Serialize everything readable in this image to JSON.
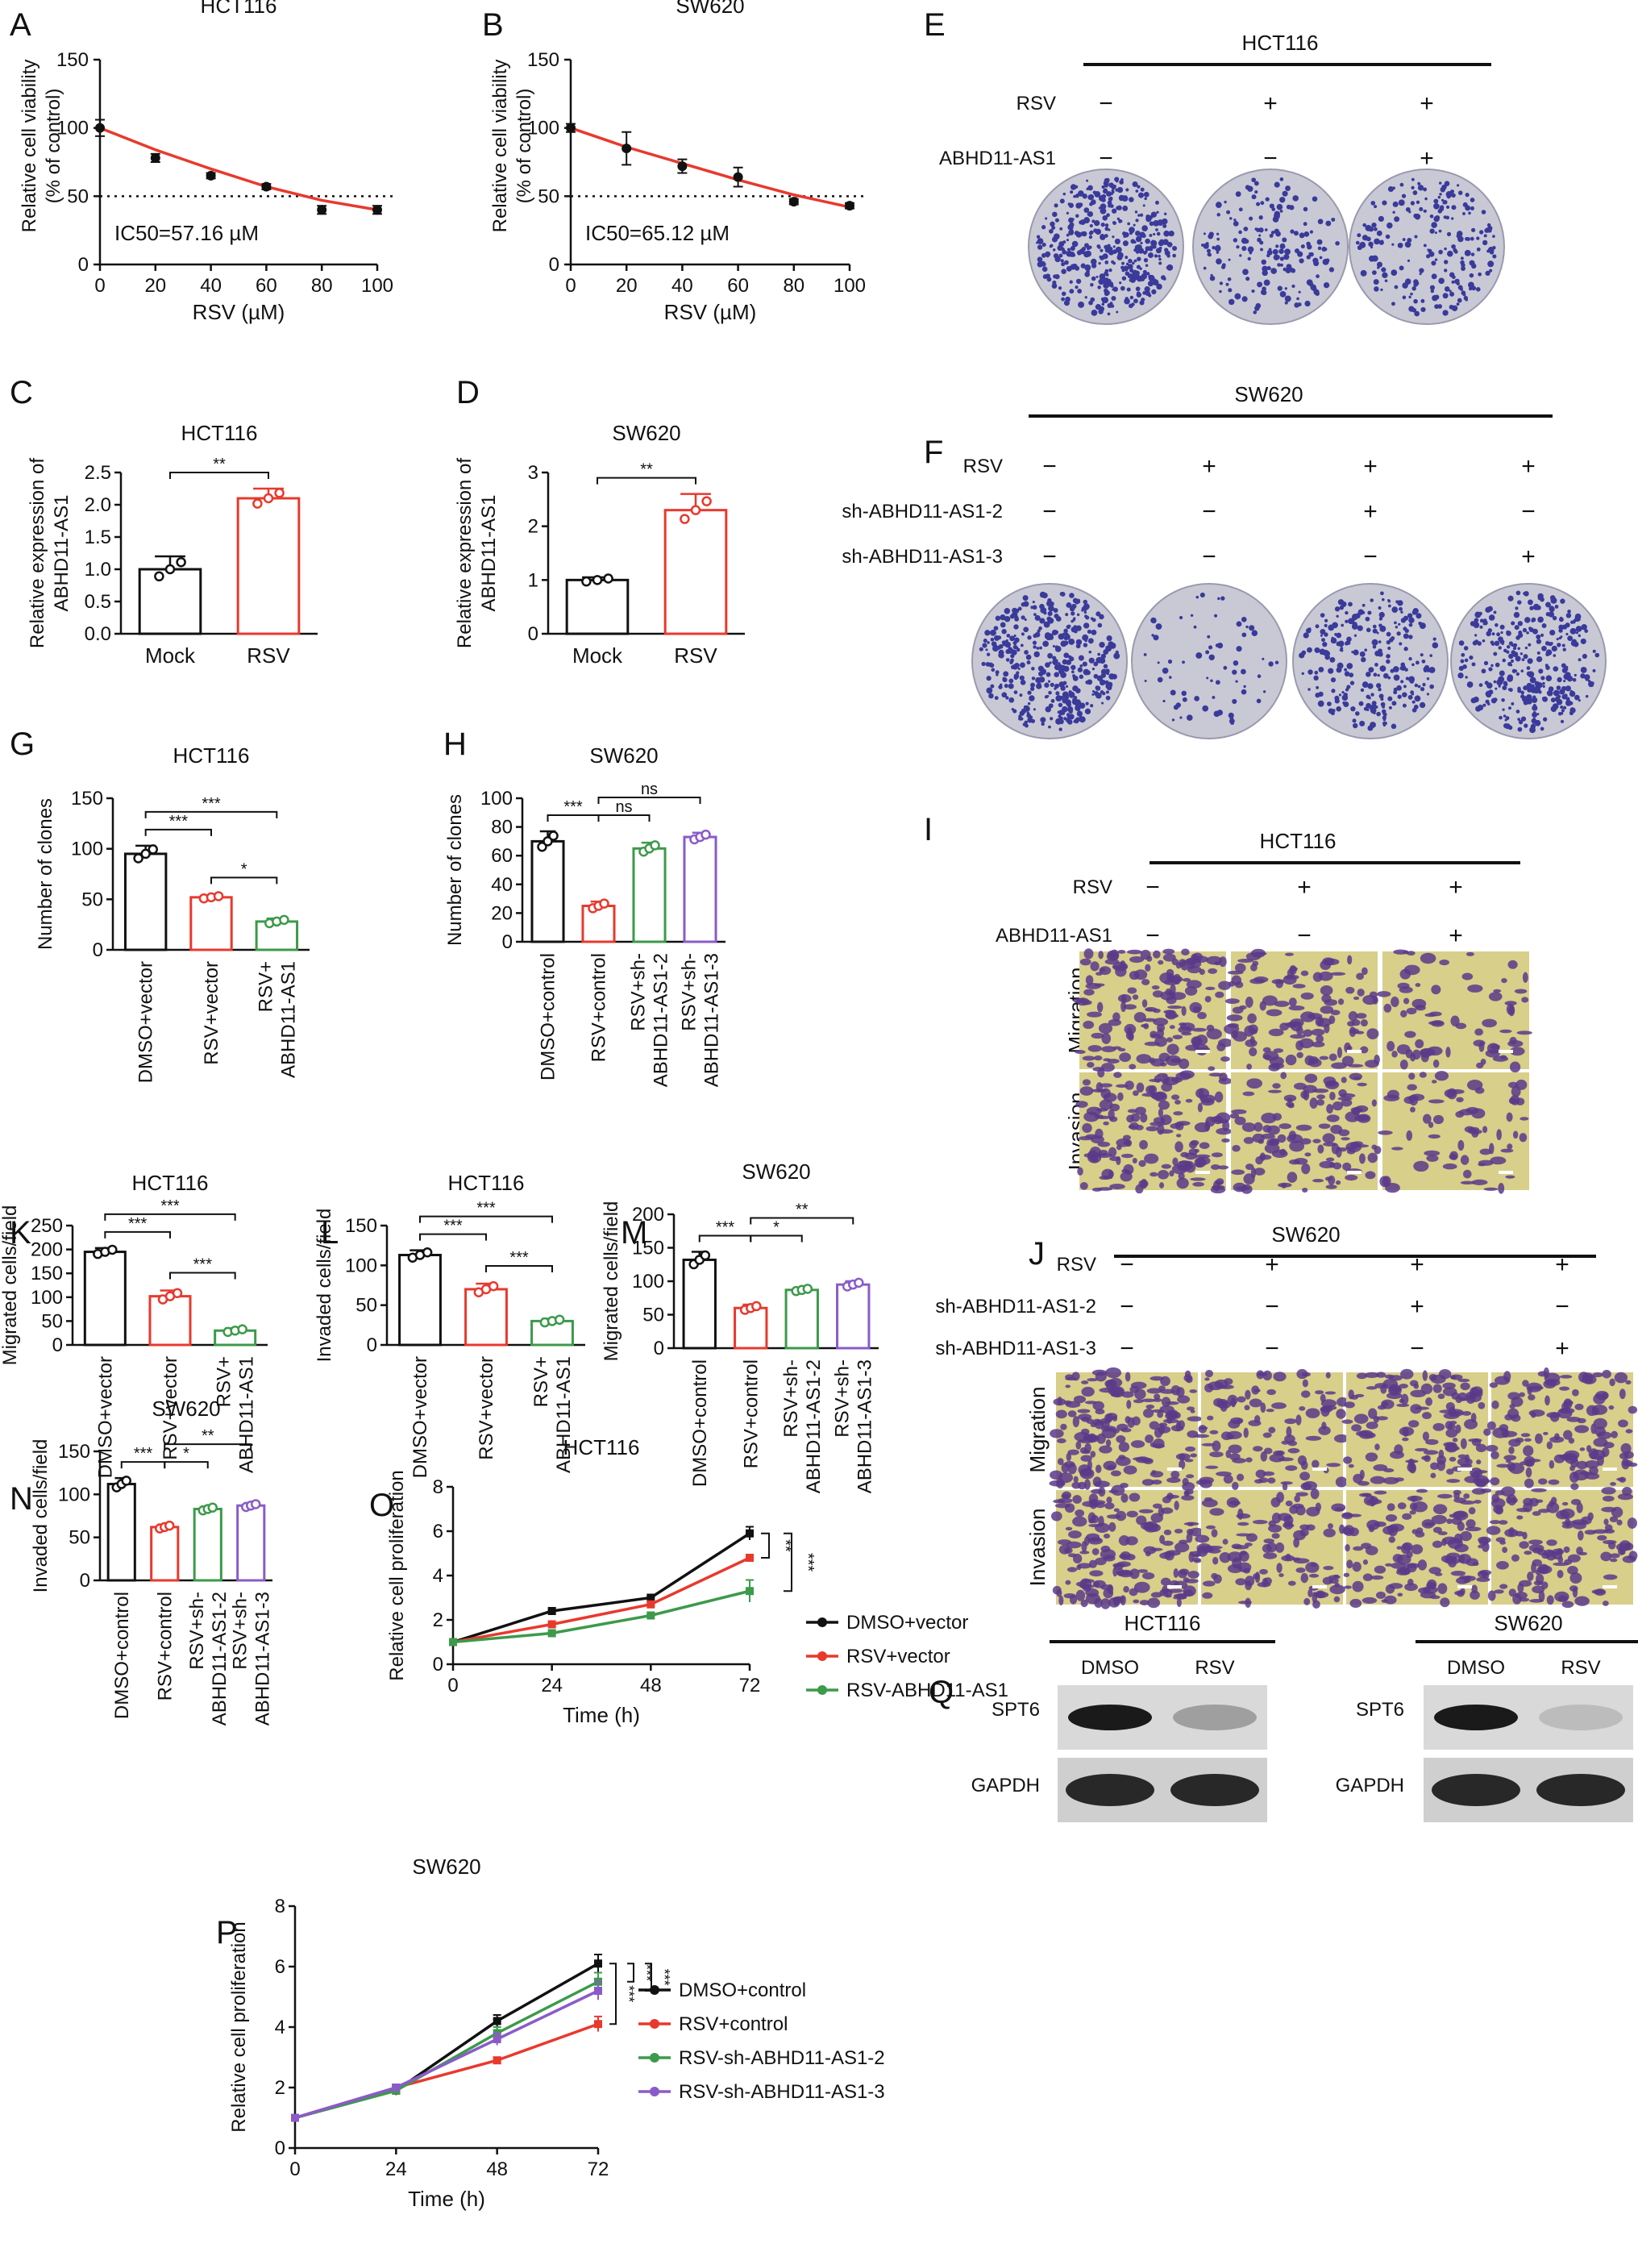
{
  "figure": {
    "panels": {
      "A": {
        "letter": "A",
        "title": "HCT116",
        "annotation": "IC50=57.16 µM"
      },
      "B": {
        "letter": "B",
        "title": "SW620",
        "annotation": "IC50=65.12 µM"
      },
      "C": {
        "letter": "C",
        "title": "HCT116"
      },
      "D": {
        "letter": "D",
        "title": "SW620"
      },
      "E": {
        "letter": "E",
        "title": "HCT116",
        "rows": [
          {
            "label": "RSV",
            "marks": [
              "−",
              "+",
              "+"
            ]
          },
          {
            "label": "ABHD11-AS1",
            "marks": [
              "−",
              "−",
              "+"
            ]
          }
        ]
      },
      "F": {
        "letter": "F",
        "title": "SW620",
        "rows": [
          {
            "label": "RSV",
            "marks": [
              "−",
              "+",
              "+",
              "+"
            ]
          },
          {
            "label": "sh-ABHD11-AS1-2",
            "marks": [
              "−",
              "−",
              "+",
              "−"
            ]
          },
          {
            "label": "sh-ABHD11-AS1-3",
            "marks": [
              "−",
              "−",
              "−",
              "+"
            ]
          }
        ]
      },
      "G": {
        "letter": "G",
        "title": "HCT116"
      },
      "H": {
        "letter": "H",
        "title": "SW620"
      },
      "I": {
        "letter": "I",
        "title": "HCT116",
        "rows": [
          {
            "label": "RSV",
            "marks": [
              "−",
              "+",
              "+"
            ]
          },
          {
            "label": "ABHD11-AS1",
            "marks": [
              "−",
              "−",
              "+"
            ]
          }
        ],
        "row_labels": [
          "Migration",
          "Invasion"
        ]
      },
      "J": {
        "letter": "J",
        "title": "SW620",
        "rows": [
          {
            "label": "RSV",
            "marks": [
              "−",
              "+",
              "+",
              "+"
            ]
          },
          {
            "label": "sh-ABHD11-AS1-2",
            "marks": [
              "−",
              "−",
              "+",
              "−"
            ]
          },
          {
            "label": "sh-ABHD11-AS1-3",
            "marks": [
              "−",
              "−",
              "−",
              "+"
            ]
          }
        ],
        "row_labels": [
          "Migration",
          "Invasion"
        ]
      },
      "K": {
        "letter": "K",
        "title": "HCT116"
      },
      "L": {
        "letter": "L",
        "title": "HCT116"
      },
      "M": {
        "letter": "M",
        "title": "SW620"
      },
      "N": {
        "letter": "N",
        "title": "SW620"
      },
      "O": {
        "letter": "O",
        "title": "HCT116"
      },
      "P": {
        "letter": "P",
        "title": "SW620"
      },
      "Q": {
        "letter": "Q",
        "blots": [
          {
            "title": "HCT116",
            "lanes": [
              "DMSO",
              "RSV"
            ],
            "bands": [
              "SPT6",
              "GAPDH"
            ],
            "spt6_intensity": [
              1.0,
              0.3
            ]
          },
          {
            "title": "SW620",
            "lanes": [
              "DMSO",
              "RSV"
            ],
            "bands": [
              "SPT6",
              "GAPDH"
            ],
            "spt6_intensity": [
              1.0,
              0.15
            ]
          }
        ]
      }
    },
    "colors": {
      "red": "#e8392d",
      "black": "#111111",
      "green": "#3c9a4a",
      "purple": "#8a5bc8",
      "dish_bg": "#c9c9d6",
      "dish_dot": "#3a3a9a",
      "well_bg": "#d8cf8a",
      "well_cell": "#5a3a8a"
    }
  },
  "chart_data": [
    {
      "panel": "A",
      "type": "scatter",
      "title": "HCT116",
      "xlabel": "RSV (µM)",
      "ylabel": "Relative cell viability (% of control)",
      "x": [
        0,
        20,
        40,
        60,
        80,
        100
      ],
      "y": [
        100,
        78,
        65,
        57,
        40,
        40
      ],
      "err": [
        6,
        3,
        2,
        2,
        3,
        3
      ],
      "xlim": [
        0,
        100
      ],
      "ylim": [
        0,
        150
      ],
      "xticks": [
        0,
        20,
        40,
        60,
        80,
        100
      ],
      "yticks": [
        0,
        50,
        100,
        150
      ],
      "fit": [
        [
          0,
          100
        ],
        [
          20,
          84
        ],
        [
          40,
          70
        ],
        [
          60,
          57
        ],
        [
          80,
          47
        ],
        [
          100,
          40
        ]
      ],
      "dashed_y": 50,
      "annotation": "IC50=57.16 µM"
    },
    {
      "panel": "B",
      "type": "scatter",
      "title": "SW620",
      "xlabel": "RSV (µM)",
      "ylabel": "Relative cell viability (% of control)",
      "x": [
        0,
        20,
        40,
        60,
        80,
        100
      ],
      "y": [
        100,
        85,
        72,
        64,
        46,
        43
      ],
      "err": [
        3,
        12,
        5,
        7,
        2,
        2
      ],
      "xlim": [
        0,
        100
      ],
      "ylim": [
        0,
        150
      ],
      "xticks": [
        0,
        20,
        40,
        60,
        80,
        100
      ],
      "yticks": [
        0,
        50,
        100,
        150
      ],
      "fit": [
        [
          0,
          100
        ],
        [
          20,
          86
        ],
        [
          40,
          74
        ],
        [
          60,
          62
        ],
        [
          80,
          51
        ],
        [
          100,
          42
        ]
      ],
      "dashed_y": 50,
      "annotation": "IC50=65.12 µM"
    },
    {
      "panel": "C",
      "type": "bar",
      "title": "HCT116",
      "categories": [
        "Mock",
        "RSV"
      ],
      "values": [
        1.0,
        2.1
      ],
      "errors": [
        0.2,
        0.15
      ],
      "ylabel": "Relative expression of ABHD11-AS1",
      "ylim": [
        0,
        2.5
      ],
      "yticks": [
        0.0,
        0.5,
        1.0,
        1.5,
        2.0,
        2.5
      ],
      "sig": [
        {
          "a": 0,
          "b": 1,
          "label": "**"
        }
      ]
    },
    {
      "panel": "D",
      "type": "bar",
      "title": "SW620",
      "categories": [
        "Mock",
        "RSV"
      ],
      "values": [
        1.0,
        2.3
      ],
      "errors": [
        0.05,
        0.3
      ],
      "ylabel": "Relative expression of ABHD11-AS1",
      "ylim": [
        0,
        3
      ],
      "yticks": [
        0,
        1,
        2,
        3
      ],
      "sig": [
        {
          "a": 0,
          "b": 1,
          "label": "**"
        }
      ]
    },
    {
      "panel": "G",
      "type": "bar",
      "title": "HCT116",
      "categories": [
        "DMSO+vector",
        "RSV+vector",
        "RSV+\nABHD11-AS1"
      ],
      "values": [
        95,
        52,
        28
      ],
      "errors": [
        8,
        2,
        3
      ],
      "ylabel": "Number of clones",
      "ylim": [
        0,
        150
      ],
      "yticks": [
        0,
        50,
        100,
        150
      ],
      "sig": [
        {
          "a": 0,
          "b": 1,
          "label": "***"
        },
        {
          "a": 0,
          "b": 2,
          "label": "***"
        },
        {
          "a": 1,
          "b": 2,
          "label": "*"
        }
      ]
    },
    {
      "panel": "H",
      "type": "bar",
      "title": "SW620",
      "categories": [
        "DMSO+control",
        "RSV+control",
        "RSV+sh-\nABHD11-AS1-2",
        "RSV+sh-\nABHD11-AS1-3"
      ],
      "values": [
        70,
        25,
        65,
        73
      ],
      "errors": [
        7,
        3,
        4,
        3
      ],
      "ylabel": "Number of clones",
      "ylim": [
        0,
        100
      ],
      "yticks": [
        0,
        20,
        40,
        60,
        80,
        100
      ],
      "sig": [
        {
          "a": 0,
          "b": 1,
          "label": "***"
        },
        {
          "a": 1,
          "b": 2,
          "label": "ns"
        },
        {
          "a": 1,
          "b": 3,
          "label": "ns"
        }
      ]
    },
    {
      "panel": "K",
      "type": "bar",
      "title": "HCT116",
      "categories": [
        "DMSO+vector",
        "RSV+vector",
        "RSV+\nABHD11-AS1"
      ],
      "values": [
        195,
        102,
        30
      ],
      "errors": [
        8,
        12,
        5
      ],
      "ylabel": "Migrated cells/field",
      "ylim": [
        0,
        250
      ],
      "yticks": [
        0,
        50,
        100,
        150,
        200,
        250
      ],
      "sig": [
        {
          "a": 0,
          "b": 1,
          "label": "***"
        },
        {
          "a": 0,
          "b": 2,
          "label": "***"
        },
        {
          "a": 1,
          "b": 2,
          "label": "***"
        }
      ]
    },
    {
      "panel": "L",
      "type": "bar",
      "title": "HCT116",
      "categories": [
        "DMSO+vector",
        "RSV+vector",
        "RSV+\nABHD11-AS1"
      ],
      "values": [
        113,
        70,
        30
      ],
      "errors": [
        6,
        7,
        3
      ],
      "ylabel": "Invaded cells/field",
      "ylim": [
        0,
        150
      ],
      "yticks": [
        0,
        50,
        100,
        150
      ],
      "sig": [
        {
          "a": 0,
          "b": 1,
          "label": "***"
        },
        {
          "a": 0,
          "b": 2,
          "label": "***"
        },
        {
          "a": 1,
          "b": 2,
          "label": "***"
        }
      ]
    },
    {
      "panel": "M",
      "type": "bar",
      "title": "SW620",
      "categories": [
        "DMSO+control",
        "RSV+control",
        "RSV+sh-\nABHD11-AS1-2",
        "RSV+sh-\nABHD11-AS1-3"
      ],
      "values": [
        132,
        60,
        87,
        95
      ],
      "errors": [
        12,
        5,
        3,
        5
      ],
      "ylabel": "Migrated cells/field",
      "ylim": [
        0,
        200
      ],
      "yticks": [
        0,
        50,
        100,
        150,
        200
      ],
      "sig": [
        {
          "a": 0,
          "b": 1,
          "label": "***"
        },
        {
          "a": 1,
          "b": 2,
          "label": "*"
        },
        {
          "a": 1,
          "b": 3,
          "label": "**"
        }
      ]
    },
    {
      "panel": "N",
      "type": "bar",
      "title": "SW620",
      "categories": [
        "DMSO+control",
        "RSV+control",
        "RSV+sh-\nABHD11-AS1-2",
        "RSV+sh-\nABHD11-AS1-3"
      ],
      "values": [
        112,
        62,
        83,
        87
      ],
      "errors": [
        7,
        3,
        3,
        3
      ],
      "ylabel": "Invaded cells/field",
      "ylim": [
        0,
        150
      ],
      "yticks": [
        0,
        50,
        100,
        150
      ],
      "sig": [
        {
          "a": 0,
          "b": 1,
          "label": "***"
        },
        {
          "a": 1,
          "b": 2,
          "label": "*"
        },
        {
          "a": 1,
          "b": 3,
          "label": "**"
        }
      ]
    },
    {
      "panel": "O",
      "type": "line",
      "title": "HCT116",
      "xlabel": "Time (h)",
      "ylabel": "Relative cell proliferation",
      "x": [
        0,
        24,
        48,
        72
      ],
      "xlim": [
        0,
        72
      ],
      "ylim": [
        0,
        8
      ],
      "xticks": [
        0,
        24,
        48,
        72
      ],
      "yticks": [
        0,
        2,
        4,
        6,
        8
      ],
      "series": [
        {
          "name": "DMSO+vector",
          "values": [
            1.0,
            2.4,
            3.0,
            5.9
          ],
          "err": [
            0.05,
            0.05,
            0.05,
            0.3
          ]
        },
        {
          "name": "RSV+vector",
          "values": [
            1.0,
            1.8,
            2.7,
            4.8
          ],
          "err": [
            0.05,
            0.05,
            0.05,
            0.1
          ]
        },
        {
          "name": "RSV-ABHD11-AS1",
          "values": [
            1.0,
            1.4,
            2.2,
            3.3
          ],
          "err": [
            0.05,
            0.05,
            0.05,
            0.5
          ]
        }
      ],
      "sig": [
        "**",
        "***"
      ]
    },
    {
      "panel": "P",
      "type": "line",
      "title": "SW620",
      "xlabel": "Time (h)",
      "ylabel": "Relative cell proliferation",
      "x": [
        0,
        24,
        48,
        72
      ],
      "xlim": [
        0,
        72
      ],
      "ylim": [
        0,
        8
      ],
      "xticks": [
        0,
        24,
        48,
        72
      ],
      "yticks": [
        0,
        2,
        4,
        6,
        8
      ],
      "series": [
        {
          "name": "DMSO+control",
          "values": [
            1.0,
            1.9,
            4.2,
            6.1
          ],
          "err": [
            0.05,
            0.15,
            0.2,
            0.3
          ]
        },
        {
          "name": "RSV+control",
          "values": [
            1.0,
            2.0,
            2.9,
            4.1
          ],
          "err": [
            0.05,
            0.1,
            0.1,
            0.25
          ]
        },
        {
          "name": "RSV-sh-ABHD11-AS1-2",
          "values": [
            1.0,
            1.9,
            3.8,
            5.5
          ],
          "err": [
            0.05,
            0.1,
            0.2,
            0.3
          ]
        },
        {
          "name": "RSV-sh-ABHD11-AS1-3",
          "values": [
            1.0,
            2.0,
            3.6,
            5.2
          ],
          "err": [
            0.05,
            0.1,
            0.2,
            0.3
          ]
        }
      ],
      "sig": [
        "***",
        "***",
        "***"
      ]
    }
  ]
}
